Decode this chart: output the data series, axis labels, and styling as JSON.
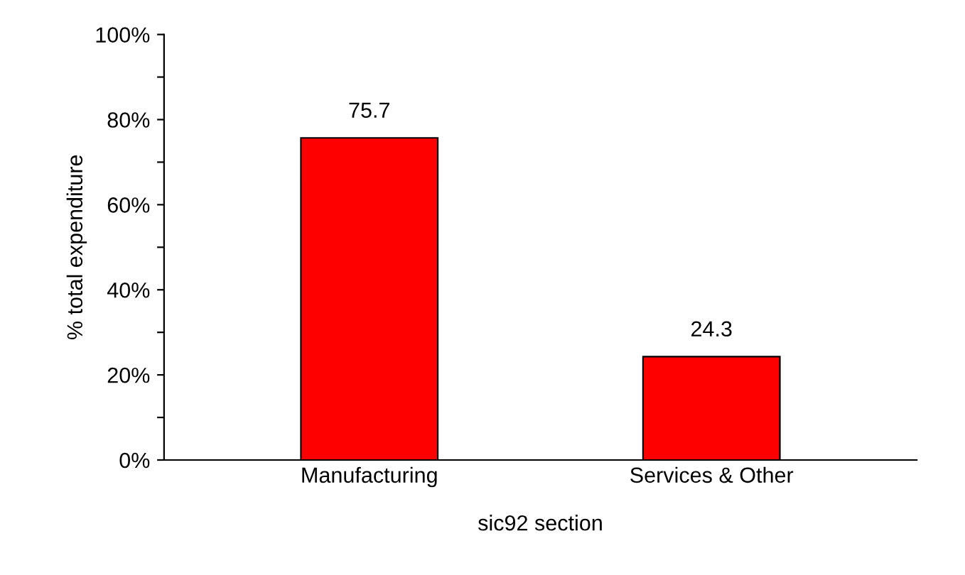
{
  "chart_data": {
    "type": "bar",
    "xlabel": "sic92 section",
    "ylabel": "% total expenditure",
    "categories": [
      "Manufacturing",
      "Services & Other"
    ],
    "values": [
      75.7,
      24.3
    ],
    "color": "#ff0000",
    "ylim": [
      0,
      100
    ],
    "yticks": [
      {
        "value": 0,
        "label": "0%"
      },
      {
        "value": 10,
        "label": null
      },
      {
        "value": 20,
        "label": "20%"
      },
      {
        "value": 30,
        "label": null
      },
      {
        "value": 40,
        "label": "40%"
      },
      {
        "value": 50,
        "label": null
      },
      {
        "value": 60,
        "label": "60%"
      },
      {
        "value": 70,
        "label": null
      },
      {
        "value": 80,
        "label": "80%"
      },
      {
        "value": 90,
        "label": null
      },
      {
        "value": 100,
        "label": "100%"
      }
    ],
    "data_labels": true,
    "grid": false,
    "legend": false
  }
}
